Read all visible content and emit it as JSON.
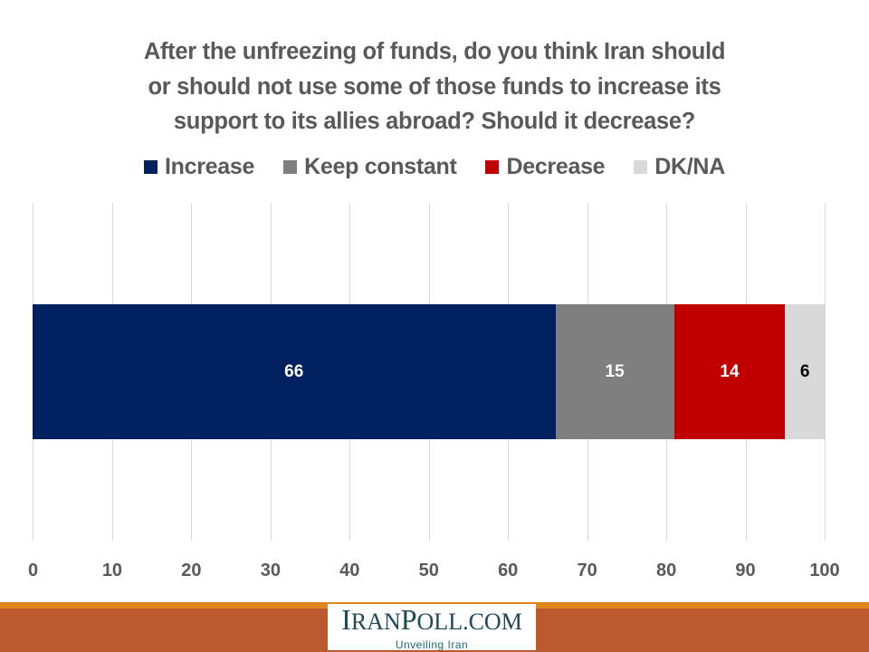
{
  "chart_data": {
    "type": "bar",
    "orientation": "horizontal",
    "stacked": true,
    "title": "After the unfreezing of funds, do you think Iran should or should not use some of those funds to increase its support to its allies abroad? Should it decrease?",
    "title_lines": [
      "After the unfreezing of funds, do you think Iran should",
      "or should not use some of those funds to increase its",
      "support to its allies abroad? Should it decrease?"
    ],
    "categories": [
      ""
    ],
    "series": [
      {
        "name": "Increase",
        "values": [
          66
        ],
        "color": "#002060",
        "label_color": "#ffffff"
      },
      {
        "name": "Keep constant",
        "values": [
          15
        ],
        "color": "#7f7f7f",
        "label_color": "#ffffff"
      },
      {
        "name": "Decrease",
        "values": [
          14
        ],
        "color": "#c00000",
        "label_color": "#ffffff"
      },
      {
        "name": "DK/NA",
        "values": [
          6
        ],
        "color": "#d9d9d9",
        "label_color": "#000000"
      }
    ],
    "xlabel": "",
    "ylabel": "",
    "xlim": [
      0,
      100
    ],
    "xticks": [
      "0",
      "10",
      "20",
      "30",
      "40",
      "50",
      "60",
      "70",
      "80",
      "90",
      "100"
    ],
    "grid": true,
    "legend_position": "top"
  },
  "footer": {
    "logo_prefix_big_1": "I",
    "logo_part_1": "RAN",
    "logo_prefix_big_2": "P",
    "logo_part_2": "OLL.COM",
    "tagline": "Unveiling Iran"
  }
}
